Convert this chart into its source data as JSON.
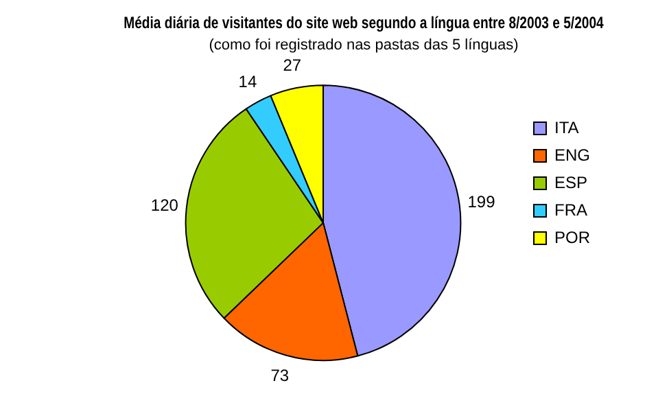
{
  "chart_data": {
    "type": "pie",
    "title": "Média diária de visitantes do site web segundo a língua entre 8/2003 e 5/2004",
    "subtitle": "(como foi registrado nas pastas das 5 línguas)",
    "categories": [
      "ITA",
      "ENG",
      "ESP",
      "FRA",
      "POR"
    ],
    "values": [
      199,
      73,
      120,
      14,
      27
    ],
    "colors": [
      "#9999ff",
      "#ff6600",
      "#99cc00",
      "#33ccff",
      "#ffff00"
    ],
    "data_labels": true,
    "legend": "right"
  }
}
